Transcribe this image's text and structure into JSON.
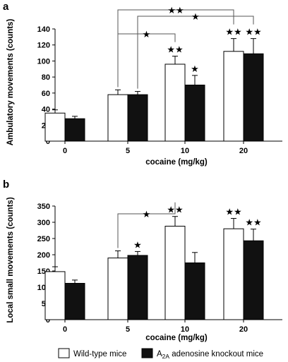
{
  "chart_data": [
    {
      "panel": "a",
      "type": "bar",
      "xlabel": "cocaine (mg/kg)",
      "ylabel": "Ambulatory movements (counts)",
      "ylim": [
        0,
        140
      ],
      "yticks": [
        0,
        20,
        40,
        60,
        80,
        100,
        120,
        140
      ],
      "categories": [
        "0",
        "5",
        "10",
        "20"
      ],
      "series": [
        {
          "key": "wt",
          "color": "#ffffff",
          "values": [
            35,
            58,
            96,
            112
          ],
          "errors": [
            4,
            6,
            10,
            16
          ],
          "stars": [
            "",
            "",
            "★★",
            "★★"
          ]
        },
        {
          "key": "ko",
          "color": "#111111",
          "values": [
            28,
            58,
            70,
            109
          ],
          "errors": [
            3,
            4,
            12,
            19
          ],
          "stars": [
            "",
            "",
            "★",
            "★★"
          ]
        }
      ],
      "brackets": [
        {
          "from": "wt:1",
          "to": "wt:3",
          "label": "★★"
        },
        {
          "from": "ko:1",
          "to": "ko:3",
          "label": "★"
        },
        {
          "from": "wt:1",
          "to": "wt:2",
          "label": "★"
        }
      ]
    },
    {
      "panel": "b",
      "type": "bar",
      "xlabel": "cocaine (mg/kg)",
      "ylabel": "Local small movements (counts)",
      "ylim": [
        0,
        350
      ],
      "yticks": [
        0,
        50,
        100,
        150,
        200,
        250,
        300,
        350
      ],
      "categories": [
        "0",
        "5",
        "10",
        "20"
      ],
      "series": [
        {
          "key": "wt",
          "color": "#ffffff",
          "values": [
            148,
            190,
            288,
            280
          ],
          "errors": [
            15,
            22,
            30,
            32
          ],
          "stars": [
            "",
            "",
            "★★",
            "★★"
          ]
        },
        {
          "key": "ko",
          "color": "#111111",
          "values": [
            112,
            198,
            175,
            243
          ],
          "errors": [
            10,
            12,
            32,
            36
          ],
          "stars": [
            "",
            "★",
            "",
            "★★"
          ]
        }
      ],
      "brackets": [
        {
          "from": "wt:1",
          "to": "wt:2",
          "label": "★"
        }
      ]
    }
  ],
  "legend": {
    "placement": "bottom",
    "items": [
      {
        "key": "wt",
        "label": "Wild-type mice",
        "color": "#ffffff"
      },
      {
        "key": "ko",
        "label_prefix": "A",
        "label_sub": "2A",
        "label_suffix": " adenosine knockout mice",
        "color": "#111111"
      }
    ]
  }
}
